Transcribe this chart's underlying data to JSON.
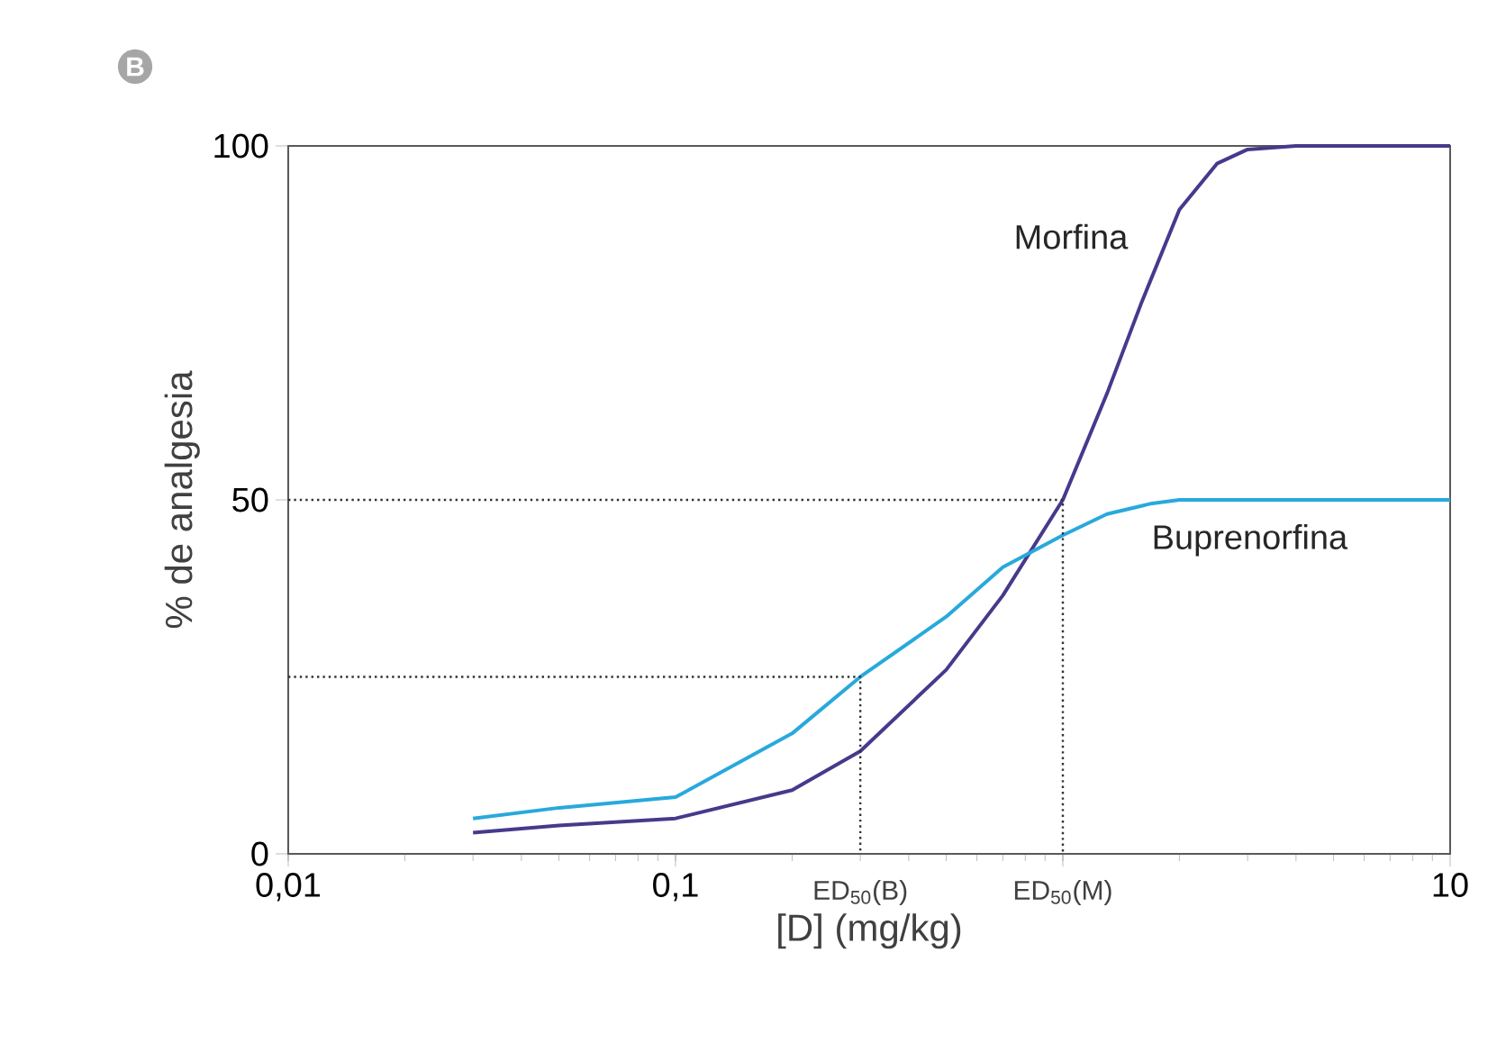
{
  "chart_data": {
    "type": "line",
    "title": "B",
    "xlabel": "[D] (mg/kg)",
    "ylabel": "% de analgesia",
    "log": "x",
    "xlim": [
      0.01,
      10
    ],
    "ylim": [
      0,
      100
    ],
    "xticks": [
      {
        "value": 0.01,
        "label": "0,01"
      },
      {
        "value": 0.1,
        "label": "0,1"
      },
      {
        "value": 1,
        "label": null
      },
      {
        "value": 10,
        "label": "10"
      }
    ],
    "yticks": [
      0,
      50,
      100
    ],
    "grid": false,
    "marker": "none",
    "annotations": [
      {
        "text": "ED$_{50}$(B)",
        "x": 0.3,
        "y": 0
      },
      {
        "text": "ED$_{50}$(M)",
        "x": 1,
        "y": 0
      }
    ],
    "series": [
      {
        "name": "Morfina",
        "color": "#463a8c",
        "x": [
          0.03,
          0.05,
          0.1,
          0.2,
          0.3,
          0.5,
          0.7,
          1,
          1.3,
          1.6,
          2,
          2.5,
          3,
          4,
          10
        ],
        "values": [
          3,
          4,
          5,
          9,
          14.5,
          26,
          36.5,
          50,
          65,
          78,
          91,
          97.5,
          99.5,
          100,
          100
        ]
      },
      {
        "name": "Buprenorfina",
        "color": "#28a9dc",
        "x": [
          0.03,
          0.05,
          0.1,
          0.2,
          0.3,
          0.5,
          0.7,
          1,
          1.3,
          1.7,
          2,
          10
        ],
        "values": [
          5,
          6.5,
          8,
          17,
          25,
          33.5,
          40.5,
          45,
          48,
          49.5,
          50,
          50
        ]
      },
      {
        "color": "#333333",
        "line_style": "dotted",
        "x": [
          0.01,
          1,
          1
        ],
        "values": [
          50,
          50,
          0
        ]
      },
      {
        "color": "#333333",
        "line_style": "dotted",
        "x": [
          0.01,
          0.3,
          0.3
        ],
        "values": [
          25,
          25,
          0
        ]
      }
    ]
  }
}
